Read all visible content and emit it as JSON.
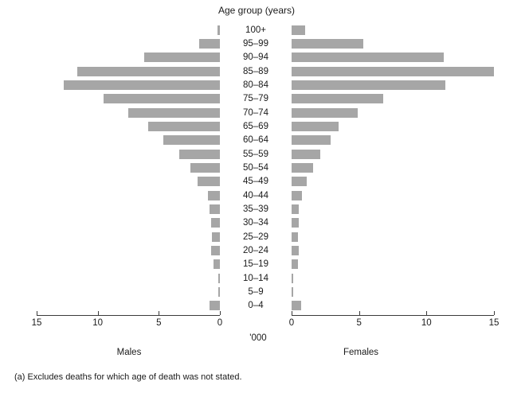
{
  "title": "Age group (years)",
  "unit_label": "'000",
  "left_axis": {
    "label": "Males",
    "ticks": [
      "15",
      "10",
      "5",
      "0"
    ]
  },
  "right_axis": {
    "label": "Females",
    "ticks": [
      "0",
      "5",
      "10",
      "15"
    ]
  },
  "footnote": "(a) Excludes deaths for which age of death was not stated.",
  "colors": {
    "bar": "#a6a6a6",
    "axis_line": "#3a3a3a",
    "text": "#1a1a1a"
  },
  "chart_data": {
    "type": "bar",
    "subtype": "population-pyramid",
    "title": "Age group (years)",
    "unit": "'000",
    "categories": [
      "100+",
      "95–99",
      "90–94",
      "85–89",
      "80–84",
      "75–79",
      "70–74",
      "65–69",
      "60–64",
      "55–59",
      "50–54",
      "45–49",
      "40–44",
      "35–39",
      "30–34",
      "25–29",
      "20–24",
      "15–19",
      "10–14",
      "5–9",
      "0–4"
    ],
    "series": [
      {
        "name": "Males",
        "values": [
          0.2,
          1.7,
          6.2,
          11.7,
          12.8,
          9.5,
          7.5,
          5.9,
          4.6,
          3.3,
          2.4,
          1.8,
          1.0,
          0.85,
          0.7,
          0.65,
          0.7,
          0.5,
          0.1,
          0.1,
          0.85
        ]
      },
      {
        "name": "Females",
        "values": [
          1.0,
          5.3,
          11.3,
          15.0,
          11.4,
          6.8,
          4.9,
          3.5,
          2.9,
          2.1,
          1.6,
          1.15,
          0.75,
          0.55,
          0.55,
          0.5,
          0.55,
          0.45,
          0.1,
          0.1,
          0.7
        ]
      }
    ],
    "xlim": [
      0,
      15
    ],
    "axis_ticks": [
      0,
      5,
      10,
      15
    ],
    "grid": false,
    "orientation": "horizontal, males left (reversed axis), females right",
    "footnote": "(a) Excludes deaths for which age of death was not stated."
  }
}
